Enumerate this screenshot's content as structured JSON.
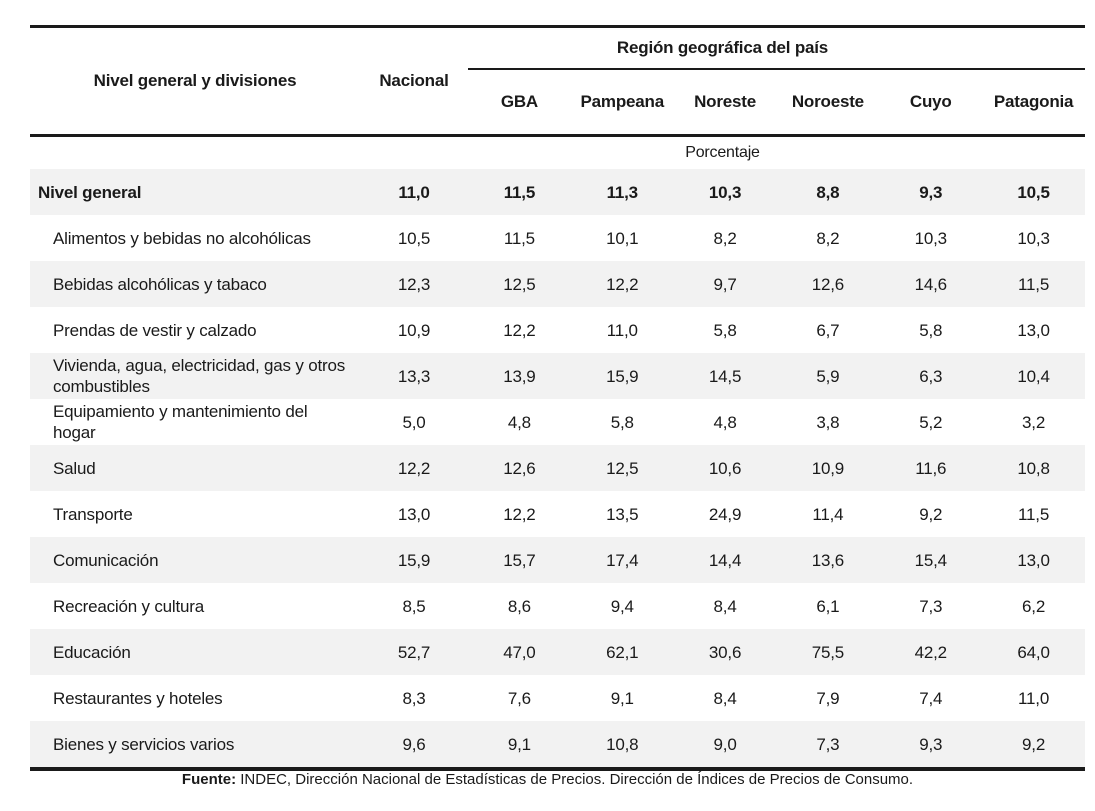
{
  "chart_data": {
    "type": "table",
    "header": {
      "label_column": "Nivel general y divisiones",
      "nacional_column": "Nacional",
      "region_group": "Región geográfica del país",
      "regions": [
        "GBA",
        "Pampeana",
        "Noreste",
        "Noroeste",
        "Cuyo",
        "Patagonia"
      ]
    },
    "unit": "Porcentaje",
    "columns": [
      "Nivel general y divisiones",
      "Nacional",
      "GBA",
      "Pampeana",
      "Noreste",
      "Noroeste",
      "Cuyo",
      "Patagonia"
    ],
    "rows": [
      {
        "label": "Nivel general",
        "bold": true,
        "values": [
          "11,0",
          "11,5",
          "11,3",
          "10,3",
          "8,8",
          "9,3",
          "10,5"
        ]
      },
      {
        "label": "Alimentos y bebidas no alcohólicas",
        "bold": false,
        "values": [
          "10,5",
          "11,5",
          "10,1",
          "8,2",
          "8,2",
          "10,3",
          "10,3"
        ]
      },
      {
        "label": "Bebidas alcohólicas y tabaco",
        "bold": false,
        "values": [
          "12,3",
          "12,5",
          "12,2",
          "9,7",
          "12,6",
          "14,6",
          "11,5"
        ]
      },
      {
        "label": "Prendas de vestir y calzado",
        "bold": false,
        "values": [
          "10,9",
          "12,2",
          "11,0",
          "5,8",
          "6,7",
          "5,8",
          "13,0"
        ]
      },
      {
        "label": "Vivienda, agua, electricidad, gas y otros combustibles",
        "bold": false,
        "values": [
          "13,3",
          "13,9",
          "15,9",
          "14,5",
          "5,9",
          "6,3",
          "10,4"
        ]
      },
      {
        "label": "Equipamiento y mantenimiento del hogar",
        "bold": false,
        "values": [
          "5,0",
          "4,8",
          "5,8",
          "4,8",
          "3,8",
          "5,2",
          "3,2"
        ]
      },
      {
        "label": "Salud",
        "bold": false,
        "values": [
          "12,2",
          "12,6",
          "12,5",
          "10,6",
          "10,9",
          "11,6",
          "10,8"
        ]
      },
      {
        "label": "Transporte",
        "bold": false,
        "values": [
          "13,0",
          "12,2",
          "13,5",
          "24,9",
          "11,4",
          "9,2",
          "11,5"
        ]
      },
      {
        "label": "Comunicación",
        "bold": false,
        "values": [
          "15,9",
          "15,7",
          "17,4",
          "14,4",
          "13,6",
          "15,4",
          "13,0"
        ]
      },
      {
        "label": "Recreación y cultura",
        "bold": false,
        "values": [
          "8,5",
          "8,6",
          "9,4",
          "8,4",
          "6,1",
          "7,3",
          "6,2"
        ]
      },
      {
        "label": "Educación",
        "bold": false,
        "values": [
          "52,7",
          "47,0",
          "62,1",
          "30,6",
          "75,5",
          "42,2",
          "64,0"
        ]
      },
      {
        "label": "Restaurantes y hoteles",
        "bold": false,
        "values": [
          "8,3",
          "7,6",
          "9,1",
          "8,4",
          "7,9",
          "7,4",
          "11,0"
        ]
      },
      {
        "label": "Bienes y servicios varios",
        "bold": false,
        "values": [
          "9,6",
          "9,1",
          "10,8",
          "9,0",
          "7,3",
          "9,3",
          "9,2"
        ]
      }
    ],
    "layout": {
      "shaded_row_color": "#f2f2f2",
      "rule_color": "#1a1a1a",
      "shading": "alternating starting with first data row"
    }
  },
  "footer": {
    "source_label": "Fuente:",
    "source_text": " INDEC, Dirección Nacional de Estadísticas de Precios. Dirección de Índices de Precios de Consumo."
  }
}
